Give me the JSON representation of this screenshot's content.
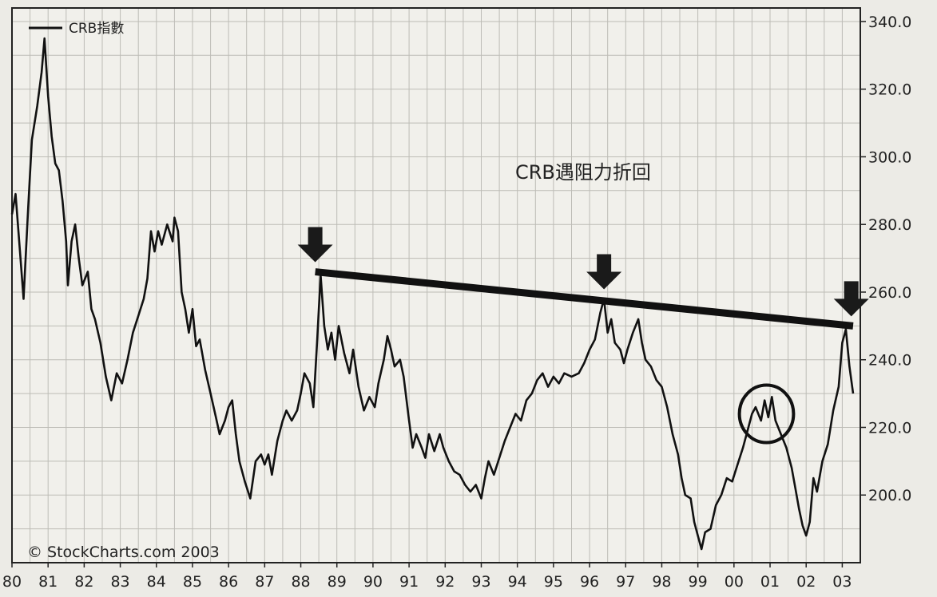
{
  "chart_data": {
    "type": "line",
    "title": "",
    "xlabel": "",
    "ylabel": "",
    "legend": {
      "label": "CRB指數",
      "placement": "top-left"
    },
    "annotation_text": "CRB遇阻力折回",
    "copyright": "© StockCharts.com 2003",
    "x_ticks": [
      "80",
      "81",
      "82",
      "83",
      "84",
      "85",
      "86",
      "87",
      "88",
      "89",
      "90",
      "91",
      "92",
      "93",
      "94",
      "95",
      "96",
      "97",
      "98",
      "99",
      "00",
      "01",
      "02",
      "03"
    ],
    "y_ticks": [
      "200.0",
      "220.0",
      "240.0",
      "260.0",
      "280.0",
      "300.0",
      "320.0",
      "340.0"
    ],
    "x_range": [
      1980.0,
      2003.5
    ],
    "y_range": [
      180,
      344
    ],
    "series": [
      {
        "name": "CRB指數",
        "color": "#111111",
        "points": [
          [
            1980.0,
            283
          ],
          [
            1980.1,
            289
          ],
          [
            1980.25,
            268
          ],
          [
            1980.32,
            258
          ],
          [
            1980.45,
            285
          ],
          [
            1980.55,
            305
          ],
          [
            1980.7,
            315
          ],
          [
            1980.82,
            325
          ],
          [
            1980.9,
            335
          ],
          [
            1981.0,
            318
          ],
          [
            1981.1,
            306
          ],
          [
            1981.2,
            298
          ],
          [
            1981.3,
            296
          ],
          [
            1981.4,
            287
          ],
          [
            1981.5,
            275
          ],
          [
            1981.55,
            262
          ],
          [
            1981.65,
            275
          ],
          [
            1981.75,
            280
          ],
          [
            1981.85,
            270
          ],
          [
            1981.95,
            262
          ],
          [
            1982.1,
            266
          ],
          [
            1982.2,
            255
          ],
          [
            1982.3,
            252
          ],
          [
            1982.45,
            245
          ],
          [
            1982.6,
            235
          ],
          [
            1982.75,
            228
          ],
          [
            1982.9,
            236
          ],
          [
            1983.05,
            233
          ],
          [
            1983.2,
            240
          ],
          [
            1983.35,
            248
          ],
          [
            1983.5,
            253
          ],
          [
            1983.65,
            258
          ],
          [
            1983.75,
            264
          ],
          [
            1983.85,
            278
          ],
          [
            1983.95,
            272
          ],
          [
            1984.05,
            278
          ],
          [
            1984.15,
            274
          ],
          [
            1984.3,
            280
          ],
          [
            1984.45,
            275
          ],
          [
            1984.5,
            282
          ],
          [
            1984.6,
            278
          ],
          [
            1984.7,
            260
          ],
          [
            1984.8,
            255
          ],
          [
            1984.9,
            248
          ],
          [
            1985.0,
            255
          ],
          [
            1985.1,
            244
          ],
          [
            1985.2,
            246
          ],
          [
            1985.35,
            237
          ],
          [
            1985.5,
            230
          ],
          [
            1985.65,
            223
          ],
          [
            1985.75,
            218
          ],
          [
            1985.9,
            222
          ],
          [
            1986.0,
            226
          ],
          [
            1986.1,
            228
          ],
          [
            1986.2,
            218
          ],
          [
            1986.3,
            210
          ],
          [
            1986.45,
            204
          ],
          [
            1986.6,
            199
          ],
          [
            1986.75,
            210
          ],
          [
            1986.9,
            212
          ],
          [
            1987.0,
            209
          ],
          [
            1987.1,
            212
          ],
          [
            1987.2,
            206
          ],
          [
            1987.35,
            216
          ],
          [
            1987.5,
            222
          ],
          [
            1987.6,
            225
          ],
          [
            1987.75,
            222
          ],
          [
            1987.9,
            225
          ],
          [
            1988.0,
            230
          ],
          [
            1988.1,
            236
          ],
          [
            1988.25,
            233
          ],
          [
            1988.35,
            226
          ],
          [
            1988.45,
            245
          ],
          [
            1988.55,
            265
          ],
          [
            1988.65,
            250
          ],
          [
            1988.75,
            243
          ],
          [
            1988.85,
            248
          ],
          [
            1988.95,
            240
          ],
          [
            1989.05,
            250
          ],
          [
            1989.2,
            242
          ],
          [
            1989.35,
            236
          ],
          [
            1989.45,
            243
          ],
          [
            1989.6,
            232
          ],
          [
            1989.75,
            225
          ],
          [
            1989.9,
            229
          ],
          [
            1990.05,
            226
          ],
          [
            1990.15,
            233
          ],
          [
            1990.3,
            240
          ],
          [
            1990.4,
            247
          ],
          [
            1990.5,
            243
          ],
          [
            1990.6,
            238
          ],
          [
            1990.75,
            240
          ],
          [
            1990.85,
            235
          ],
          [
            1991.0,
            222
          ],
          [
            1991.1,
            214
          ],
          [
            1991.2,
            218
          ],
          [
            1991.35,
            214
          ],
          [
            1991.45,
            211
          ],
          [
            1991.55,
            218
          ],
          [
            1991.7,
            213
          ],
          [
            1991.85,
            218
          ],
          [
            1991.95,
            214
          ],
          [
            1992.1,
            210
          ],
          [
            1992.25,
            207
          ],
          [
            1992.4,
            206
          ],
          [
            1992.55,
            203
          ],
          [
            1992.7,
            201
          ],
          [
            1992.85,
            203
          ],
          [
            1993.0,
            199
          ],
          [
            1993.1,
            205
          ],
          [
            1993.2,
            210
          ],
          [
            1993.35,
            206
          ],
          [
            1993.5,
            211
          ],
          [
            1993.65,
            216
          ],
          [
            1993.8,
            220
          ],
          [
            1993.95,
            224
          ],
          [
            1994.1,
            222
          ],
          [
            1994.25,
            228
          ],
          [
            1994.4,
            230
          ],
          [
            1994.55,
            234
          ],
          [
            1994.7,
            236
          ],
          [
            1994.85,
            232
          ],
          [
            1995.0,
            235
          ],
          [
            1995.15,
            233
          ],
          [
            1995.3,
            236
          ],
          [
            1995.5,
            235
          ],
          [
            1995.7,
            236
          ],
          [
            1995.85,
            239
          ],
          [
            1996.0,
            243
          ],
          [
            1996.15,
            246
          ],
          [
            1996.3,
            254
          ],
          [
            1996.4,
            258
          ],
          [
            1996.5,
            248
          ],
          [
            1996.6,
            252
          ],
          [
            1996.7,
            245
          ],
          [
            1996.85,
            243
          ],
          [
            1996.95,
            239
          ],
          [
            1997.05,
            243
          ],
          [
            1997.2,
            248
          ],
          [
            1997.35,
            252
          ],
          [
            1997.45,
            245
          ],
          [
            1997.55,
            240
          ],
          [
            1997.7,
            238
          ],
          [
            1997.85,
            234
          ],
          [
            1998.0,
            232
          ],
          [
            1998.15,
            226
          ],
          [
            1998.3,
            218
          ],
          [
            1998.45,
            212
          ],
          [
            1998.55,
            205
          ],
          [
            1998.65,
            200
          ],
          [
            1998.8,
            199
          ],
          [
            1998.9,
            192
          ],
          [
            1999.0,
            188
          ],
          [
            1999.1,
            184
          ],
          [
            1999.2,
            189
          ],
          [
            1999.35,
            190
          ],
          [
            1999.5,
            197
          ],
          [
            1999.65,
            200
          ],
          [
            1999.8,
            205
          ],
          [
            1999.95,
            204
          ],
          [
            2000.1,
            209
          ],
          [
            2000.25,
            214
          ],
          [
            2000.4,
            220
          ],
          [
            2000.5,
            224
          ],
          [
            2000.6,
            226
          ],
          [
            2000.75,
            222
          ],
          [
            2000.85,
            228
          ],
          [
            2000.95,
            223
          ],
          [
            2001.05,
            229
          ],
          [
            2001.15,
            222
          ],
          [
            2001.3,
            218
          ],
          [
            2001.45,
            214
          ],
          [
            2001.6,
            208
          ],
          [
            2001.7,
            202
          ],
          [
            2001.8,
            196
          ],
          [
            2001.9,
            191
          ],
          [
            2002.0,
            188
          ],
          [
            2002.1,
            192
          ],
          [
            2002.2,
            205
          ],
          [
            2002.3,
            201
          ],
          [
            2002.45,
            210
          ],
          [
            2002.6,
            215
          ],
          [
            2002.75,
            225
          ],
          [
            2002.9,
            232
          ],
          [
            2003.0,
            245
          ],
          [
            2003.1,
            249
          ],
          [
            2003.2,
            238
          ],
          [
            2003.3,
            230
          ]
        ]
      }
    ],
    "resistance_line": [
      [
        1988.4,
        266
      ],
      [
        2003.3,
        250
      ]
    ],
    "down_arrows": [
      [
        1988.4,
        266
      ],
      [
        1996.4,
        258
      ],
      [
        2003.25,
        250
      ]
    ],
    "circle": {
      "center": [
        2000.9,
        224
      ],
      "radius_x": 0.75,
      "radius_y": 8.5
    },
    "grid": true,
    "y_axis_side": "right"
  }
}
